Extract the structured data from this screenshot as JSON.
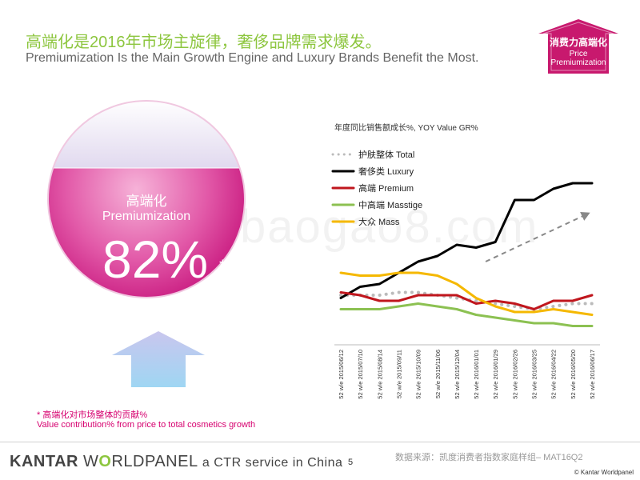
{
  "header": {
    "title_cn": "高端化是2016年市场主旋律，奢侈品牌需求爆发。",
    "title_en": "Premiumization Is the Main Growth Engine and Luxury Brands Benefit the Most."
  },
  "badge": {
    "line1": "消费力高端化",
    "line2": "Price",
    "line3": "Premiumization",
    "color": "#c8196e"
  },
  "circle": {
    "label_cn": "高端化",
    "label_en": "Premiumization",
    "value": "82%",
    "mark": "*",
    "color": "#d94a9c"
  },
  "footnote": {
    "cn": "* 高端化对市场整体的贡献%",
    "en": "Value contribution% from price to total cosmetics growth"
  },
  "chart_data": {
    "type": "line",
    "title": "年度同比销售额成长%, YOY Value GR%",
    "categories": [
      "52 w/e 2015/06/12",
      "52 w/e 2015/07/10",
      "52 w/e 2015/08/14",
      "52 w/e 2015/09/11",
      "52 w/e 2015/10/09",
      "52 w/e 2015/11/06",
      "52 w/e 2015/12/04",
      "52 w/e 2016/01/01",
      "52 w/e 2016/01/29",
      "52 w/e 2016/02/26",
      "52 w/e 2016/03/25",
      "52 w/e 2016/04/22",
      "52 w/e 2016/05/20",
      "52 w/e 2016/06/17"
    ],
    "series": [
      {
        "name": "护肤整体 Total",
        "style": "dotted",
        "color": "#bbbbbb",
        "values": [
          16,
          16,
          16,
          17,
          17,
          16,
          15,
          14,
          13,
          12,
          11,
          12,
          13,
          13
        ]
      },
      {
        "name": "奢侈类 Luxury",
        "style": "solid",
        "color": "#000000",
        "values": [
          15,
          19,
          20,
          24,
          28,
          30,
          34,
          33,
          35,
          50,
          50,
          54,
          56,
          56
        ]
      },
      {
        "name": "高端 Premium",
        "style": "solid",
        "color": "#c0161d",
        "values": [
          17,
          16,
          14,
          14,
          16,
          16,
          16,
          13,
          14,
          13,
          11,
          14,
          14,
          16
        ]
      },
      {
        "name": "中高端 Masstige",
        "style": "solid",
        "color": "#8cc152",
        "values": [
          11,
          11,
          11,
          12,
          13,
          12,
          11,
          9,
          8,
          7,
          6,
          6,
          5,
          5
        ]
      },
      {
        "name": "大众 Mass",
        "style": "solid",
        "color": "#f5b800",
        "values": [
          24,
          23,
          23,
          24,
          24,
          23,
          20,
          15,
          12,
          10,
          10,
          11,
          10,
          9
        ]
      }
    ],
    "trend_arrow": {
      "color": "#888888",
      "style": "dashed"
    },
    "ylim": [
      0,
      60
    ],
    "grid": false,
    "legend_position": "top-left"
  },
  "footer": {
    "logo_kantar": "KANTAR",
    "logo_w": "W",
    "logo_o": "O",
    "logo_rest": "RLDPANEL",
    "logo_ctr": "a CTR service in China",
    "page_number": "5",
    "source": "数据来源：凯度消费者指数家庭样组– MAT16Q2",
    "copyright": "© Kantar Worldpanel"
  },
  "watermark": "baogao8.com"
}
